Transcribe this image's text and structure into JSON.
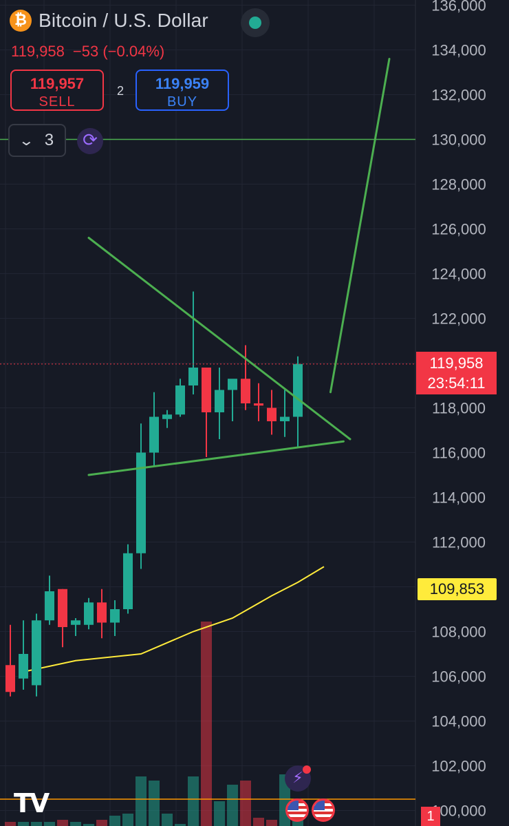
{
  "header": {
    "coin_icon_glyph": "₿",
    "coin_icon": "bitcoin-icon",
    "title": "Bitcoin / U.S. Dollar",
    "last_price": "119,958",
    "change": "−53 (−0.04%)"
  },
  "trade": {
    "sell_price": "119,957",
    "sell_label": "SELL",
    "spread": "2",
    "buy_price": "119,959",
    "buy_label": "BUY"
  },
  "toolbar": {
    "chevron": "❯",
    "indicator_count": "3",
    "sync_icon": "⟳"
  },
  "price_tag": {
    "price": "119,958",
    "countdown": "23:54:11"
  },
  "ma_tag": "109,853",
  "bottom": {
    "logo": "TV",
    "bolt_icon": "⚡",
    "alerts_count": "1"
  },
  "colors": {
    "background": "#161a25",
    "up": "#22ab94",
    "down": "#f23645",
    "trendline": "#4caf50",
    "moving_average": "#ffeb3b",
    "buy": "#2962ff",
    "sell": "#f23645"
  },
  "chart_data": {
    "type": "candlestick",
    "y_axis": {
      "position": "right",
      "ticks": [
        100000,
        102000,
        104000,
        106000,
        108000,
        110000,
        112000,
        114000,
        116000,
        118000,
        120000,
        122000,
        124000,
        126000,
        128000,
        130000,
        132000,
        134000,
        136000
      ],
      "tick_labels": [
        "100,000",
        "102,000",
        "104,000",
        "106,000",
        "108,000",
        "110,000",
        "112,000",
        "114,000",
        "116,000",
        "118,000",
        "120,000",
        "122,000",
        "124,000",
        "126,000",
        "128,000",
        "130,000",
        "132,000",
        "134,000",
        "136,000"
      ],
      "range": [
        99900,
        136300
      ]
    },
    "grid": true,
    "candles": [
      {
        "o": 106500,
        "h": 108300,
        "l": 105100,
        "c": 105300
      },
      {
        "o": 105900,
        "h": 108500,
        "l": 105400,
        "c": 107000
      },
      {
        "o": 105600,
        "h": 108800,
        "l": 105100,
        "c": 108500
      },
      {
        "o": 108500,
        "h": 110500,
        "l": 108300,
        "c": 109800
      },
      {
        "o": 109900,
        "h": 109900,
        "l": 107300,
        "c": 108200
      },
      {
        "o": 108300,
        "h": 108600,
        "l": 107800,
        "c": 108500
      },
      {
        "o": 108300,
        "h": 109500,
        "l": 108100,
        "c": 109300
      },
      {
        "o": 109300,
        "h": 109900,
        "l": 107700,
        "c": 108400
      },
      {
        "o": 108400,
        "h": 109400,
        "l": 107800,
        "c": 109000
      },
      {
        "o": 109000,
        "h": 111900,
        "l": 108800,
        "c": 111500
      },
      {
        "o": 111500,
        "h": 117300,
        "l": 110800,
        "c": 116000
      },
      {
        "o": 116000,
        "h": 118700,
        "l": 115400,
        "c": 117600
      },
      {
        "o": 117500,
        "h": 117900,
        "l": 117100,
        "c": 117700
      },
      {
        "o": 117700,
        "h": 119300,
        "l": 117600,
        "c": 119000
      },
      {
        "o": 119000,
        "h": 123200,
        "l": 118600,
        "c": 119800
      },
      {
        "o": 119800,
        "h": 119800,
        "l": 115800,
        "c": 117800
      },
      {
        "o": 117800,
        "h": 119800,
        "l": 116600,
        "c": 118800
      },
      {
        "o": 118800,
        "h": 119100,
        "l": 117400,
        "c": 119300
      },
      {
        "o": 119300,
        "h": 120800,
        "l": 117900,
        "c": 118200
      },
      {
        "o": 118200,
        "h": 119100,
        "l": 117400,
        "c": 118100
      },
      {
        "o": 118000,
        "h": 118800,
        "l": 116800,
        "c": 117400
      },
      {
        "o": 117400,
        "h": 118800,
        "l": 116700,
        "c": 117600
      },
      {
        "o": 117600,
        "h": 120300,
        "l": 116200,
        "c": 119958
      }
    ],
    "moving_average": [
      {
        "i": 1,
        "v": 106200
      },
      {
        "i": 5,
        "v": 106700
      },
      {
        "i": 10,
        "v": 107000
      },
      {
        "i": 14,
        "v": 108000
      },
      {
        "i": 17,
        "v": 108600
      },
      {
        "i": 20,
        "v": 109600
      },
      {
        "i": 22,
        "v": 110200
      },
      {
        "i": 24,
        "v": 110900
      }
    ],
    "volume": [
      0.02,
      0.02,
      0.02,
      0.02,
      0.03,
      0.02,
      0.01,
      0.03,
      0.05,
      0.06,
      0.24,
      0.22,
      0.06,
      0.01,
      0.24,
      0.99,
      0.12,
      0.2,
      0.22,
      0.04,
      0.03,
      0.25,
      0.13
    ],
    "trendlines": [
      {
        "name": "descending-resistance",
        "from": {
          "i": 6,
          "v": 125600
        },
        "to": {
          "i": 26,
          "v": 116600
        }
      },
      {
        "name": "ascending-support",
        "from": {
          "i": 6,
          "v": 115000
        },
        "to": {
          "i": 25.5,
          "v": 116500
        }
      },
      {
        "name": "projection",
        "from": {
          "i": 24.5,
          "v": 118700
        },
        "to": {
          "i": 29,
          "v": 133600
        }
      }
    ],
    "horizontal_line": 130000,
    "last_price_line": 119958
  }
}
